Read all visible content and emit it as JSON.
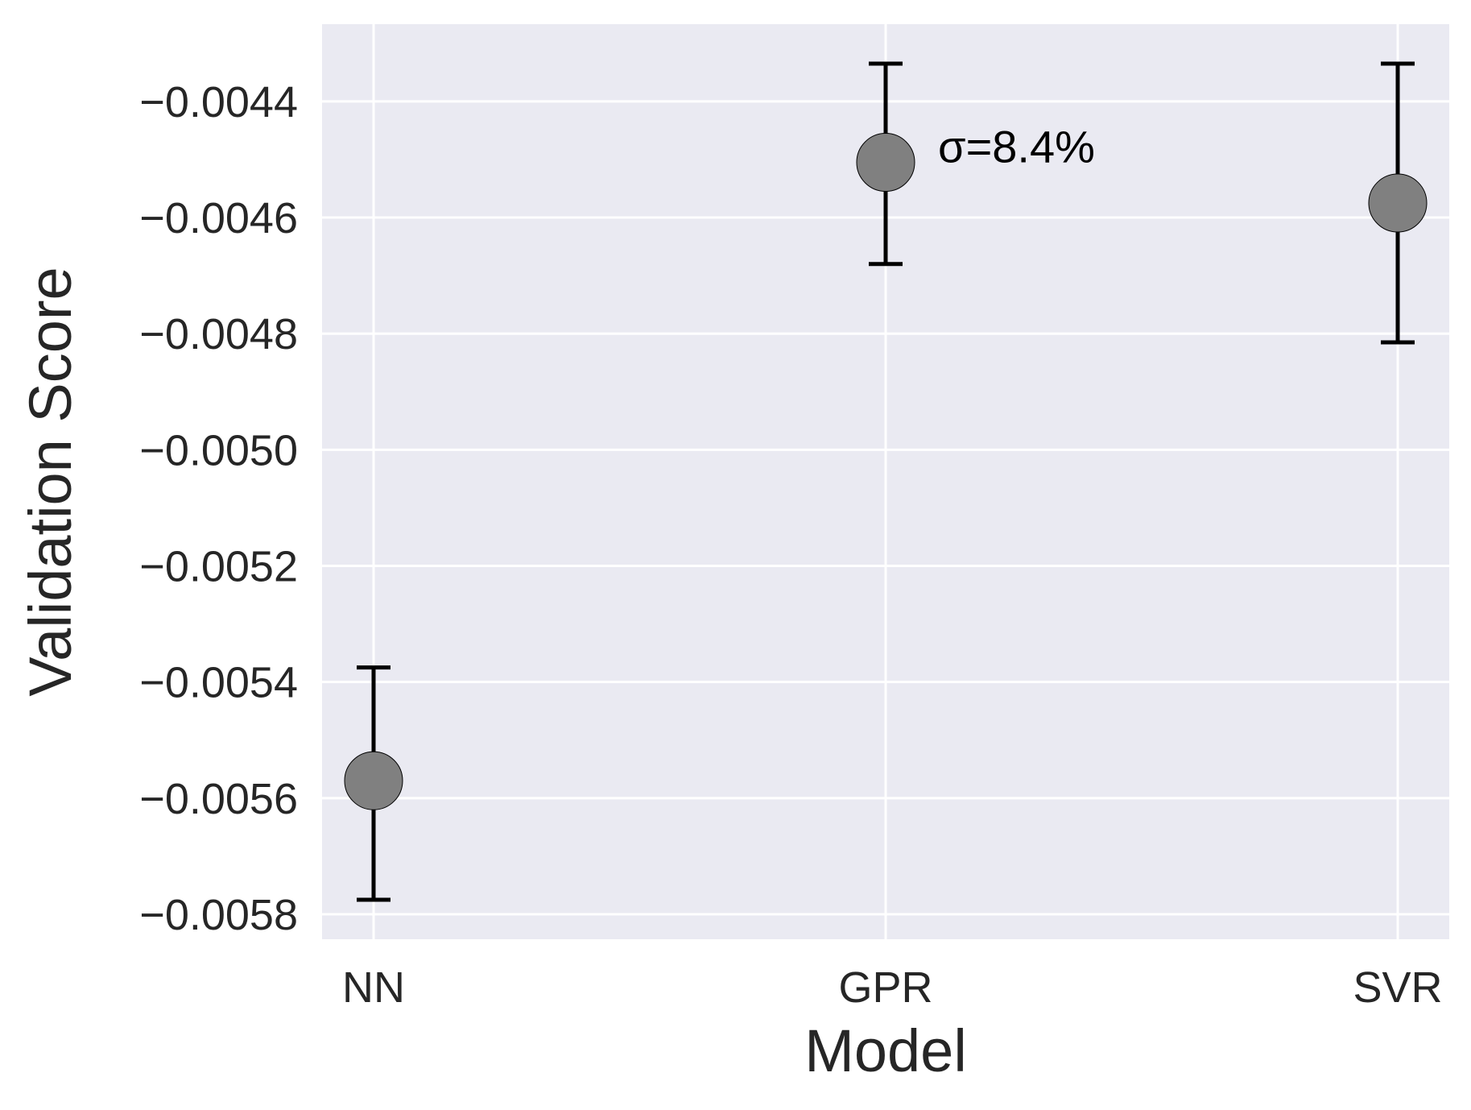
{
  "chart_data": {
    "type": "scatter",
    "title": "",
    "xlabel": "Model",
    "ylabel": "Validation Score",
    "categories": [
      "NN",
      "GPR",
      "SVR"
    ],
    "series": [
      {
        "values": [
          -0.00557,
          -0.004505,
          -0.004575
        ],
        "error_low": [
          -0.005775,
          -0.00468,
          -0.004815
        ],
        "error_high": [
          -0.005375,
          -0.004335,
          -0.004335
        ]
      }
    ],
    "annotations": [
      {
        "text": "σ=8.4%",
        "category": "GPR"
      }
    ],
    "ylim": [
      -0.005843,
      -0.004267
    ],
    "yticks": [
      -0.0058,
      -0.0056,
      -0.0054,
      -0.0052,
      -0.005,
      -0.0048,
      -0.0046,
      -0.0044
    ],
    "ytick_labels": [
      "−0.0058",
      "−0.0056",
      "−0.0054",
      "−0.0052",
      "−0.0050",
      "−0.0048",
      "−0.0046",
      "−0.0044"
    ],
    "grid": true,
    "colors": {
      "plot_background": "#eaeaf2",
      "grid": "#ffffff",
      "marker": "#808080",
      "marker_edge": "#000000",
      "errorbar": "#000000"
    }
  }
}
